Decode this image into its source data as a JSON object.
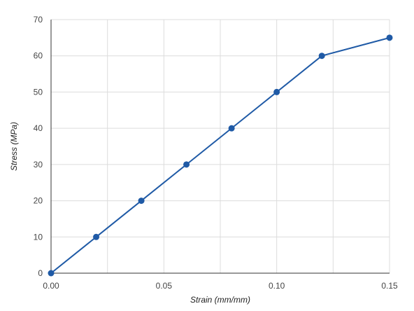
{
  "chart_data": {
    "type": "line",
    "title": "",
    "xlabel": "Strain (mm/mm)",
    "ylabel": "Stress (MPa)",
    "xlim": [
      0,
      0.15
    ],
    "ylim": [
      0,
      70
    ],
    "x_ticks": [
      "0.00",
      "0.05",
      "0.10",
      "0.15"
    ],
    "x_tick_values": [
      0,
      0.05,
      0.1,
      0.15
    ],
    "y_ticks": [
      "0",
      "10",
      "20",
      "30",
      "40",
      "50",
      "60",
      "70"
    ],
    "y_tick_values": [
      0,
      10,
      20,
      30,
      40,
      50,
      60,
      70
    ],
    "grid": true,
    "legend": "none",
    "series": [
      {
        "x": [
          0.0,
          0.02,
          0.04,
          0.06,
          0.08,
          0.1,
          0.12,
          0.15
        ],
        "y": [
          0,
          10,
          20,
          30,
          40,
          50,
          60,
          65
        ],
        "color": "#1f5aa6",
        "markers": true
      }
    ]
  }
}
